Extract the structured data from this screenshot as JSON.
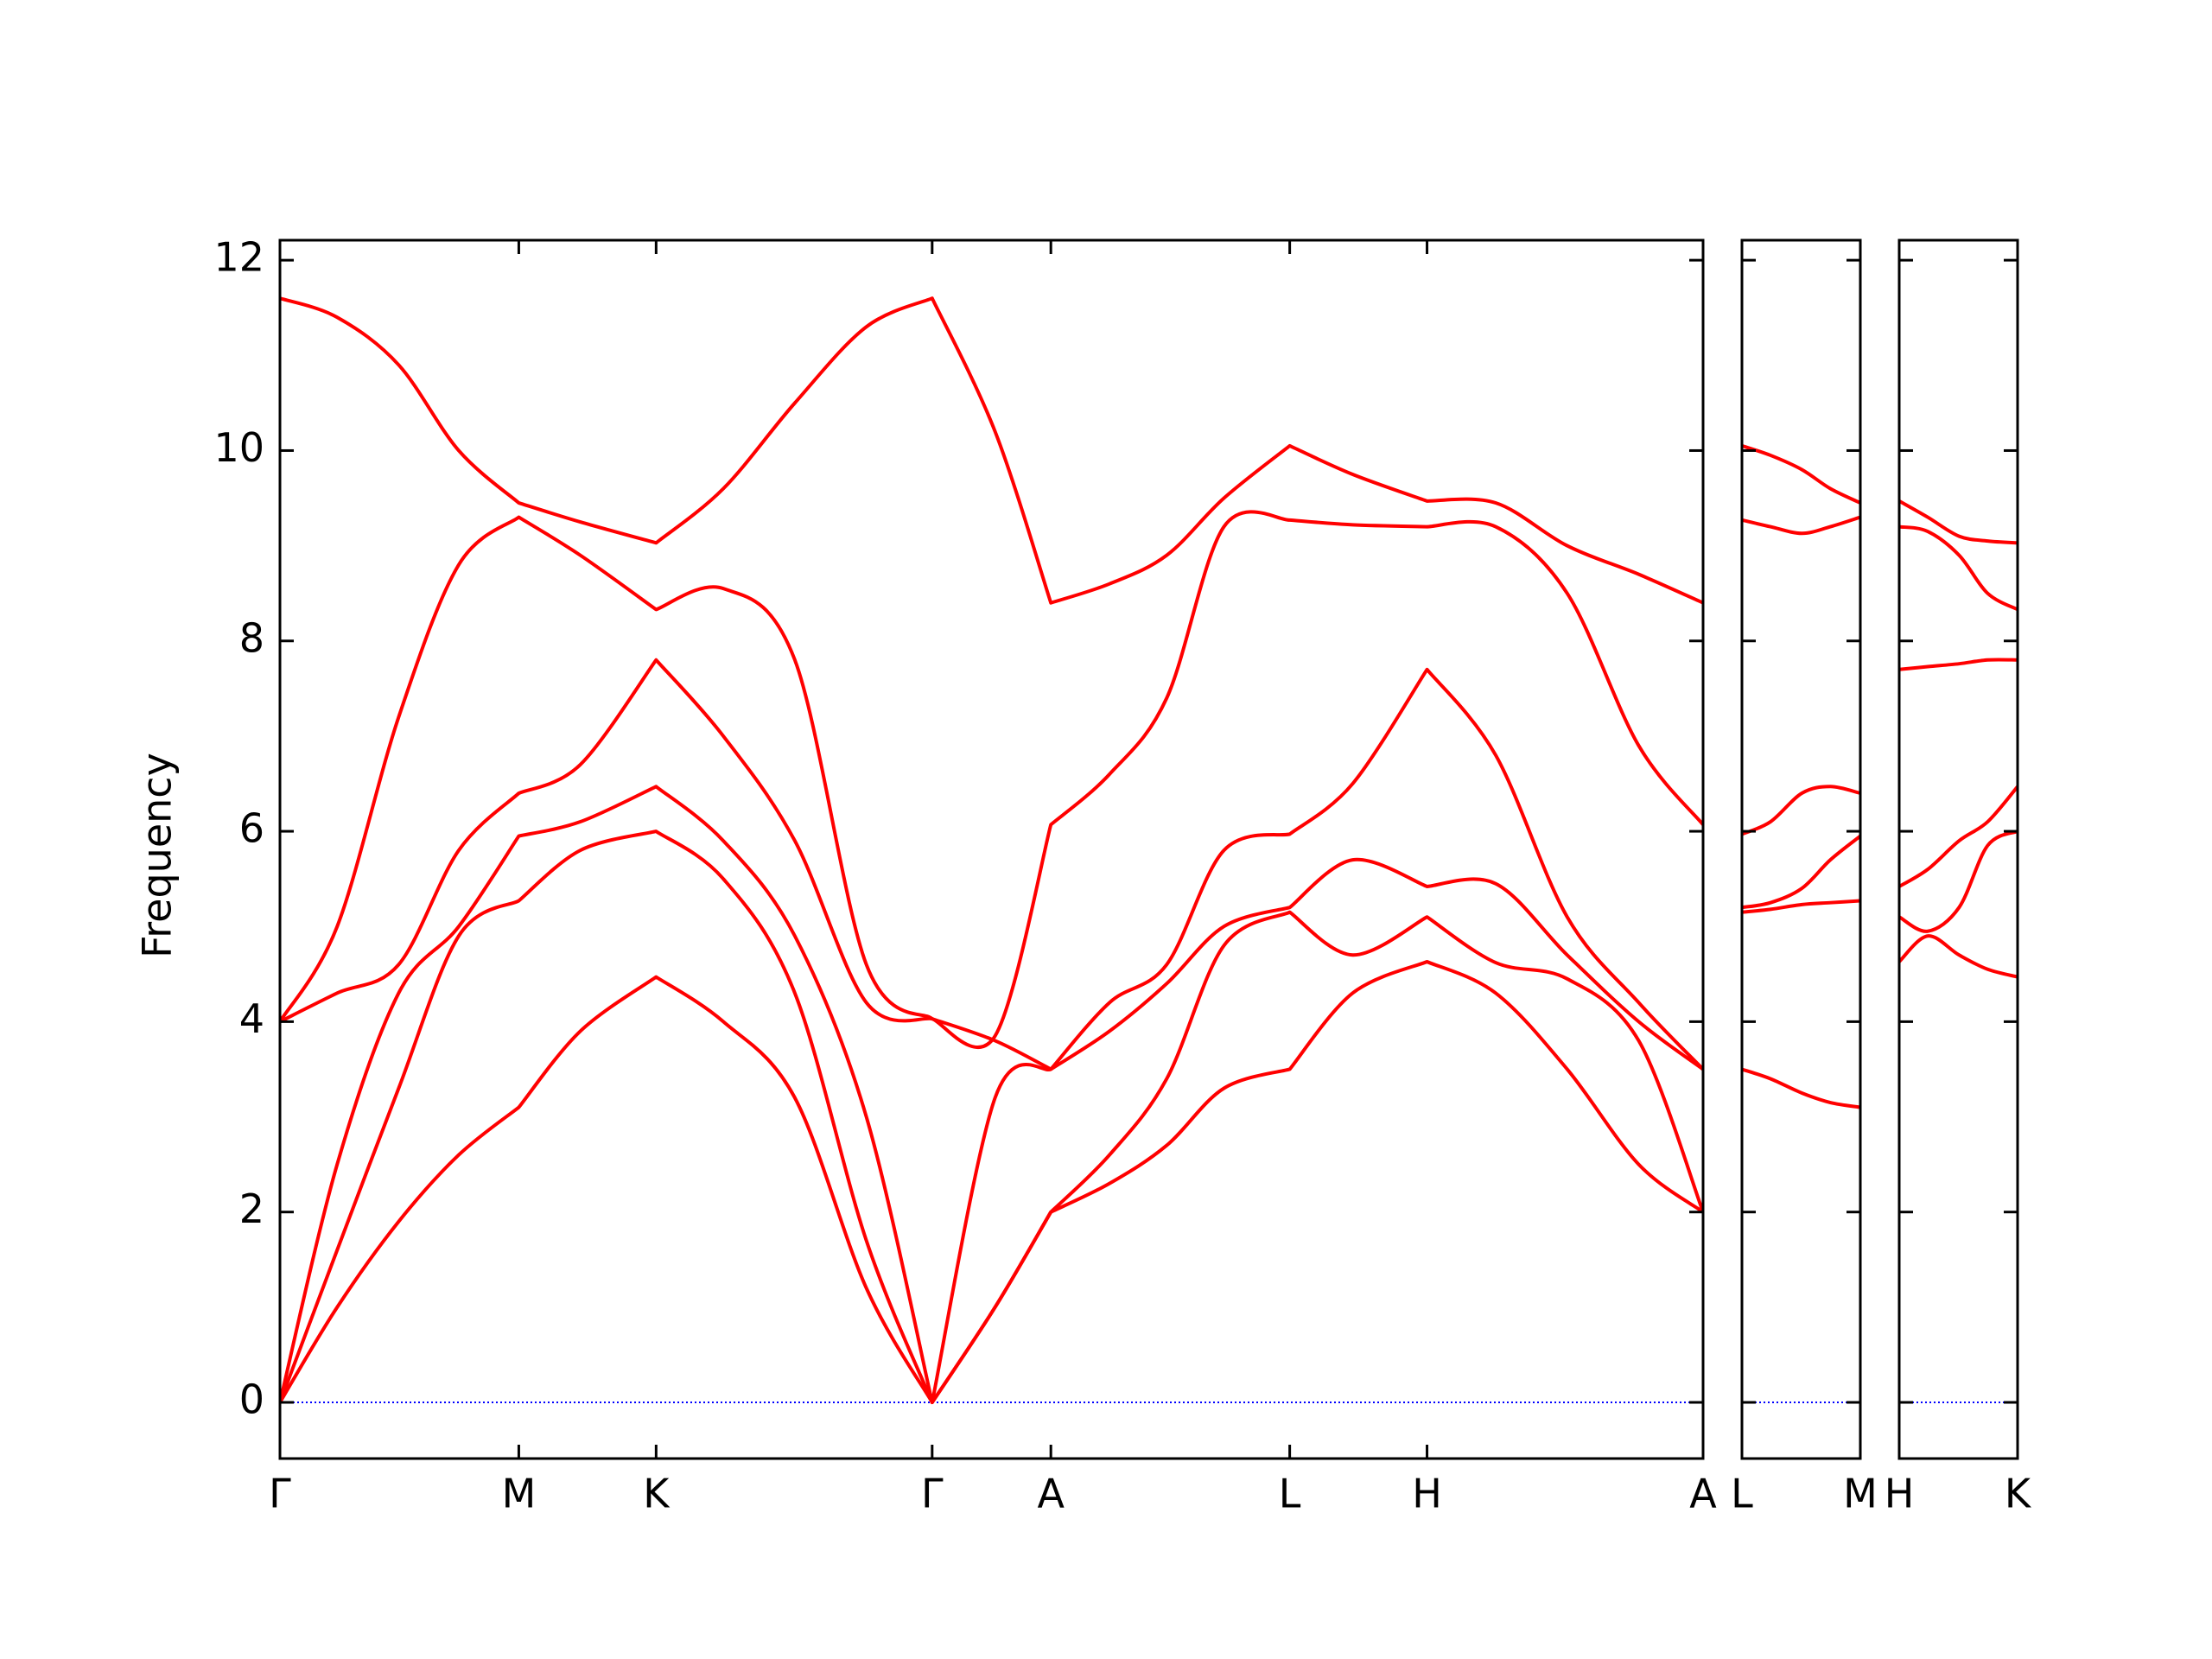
{
  "chart_data": [
    {
      "type": "line",
      "ylabel": "Frequency",
      "x": [
        0,
        40,
        83,
        125,
        167,
        210,
        263,
        310,
        360,
        410,
        456,
        500,
        539,
        580,
        620,
        660,
        706,
        750,
        802,
        850,
        900,
        950,
        995
      ],
      "series": [
        {
          "color": "#ff0000",
          "values": [
            0,
            1.0,
            1.9,
            2.6,
            3.1,
            3.9,
            4.47,
            4.0,
            3.2,
            1.2,
            0,
            1.0,
            2.0,
            2.3,
            2.7,
            3.3,
            3.5,
            4.3,
            4.63,
            4.3,
            3.5,
            2.5,
            2.0
          ]
        },
        {
          "color": "#ff0000",
          "values": [
            0,
            1.6,
            3.3,
            4.9,
            5.27,
            5.8,
            6.0,
            5.5,
            4.3,
            1.7,
            0,
            1.0,
            2.0,
            2.6,
            3.4,
            4.8,
            5.15,
            4.7,
            5.1,
            4.62,
            4.45,
            3.8,
            2.0
          ]
        },
        {
          "color": "#ff0000",
          "values": [
            0,
            2.5,
            4.3,
            5.0,
            5.95,
            6.1,
            6.47,
            5.9,
            4.9,
            3.0,
            0,
            3.2,
            3.5,
            3.9,
            4.4,
            5.0,
            5.2,
            5.7,
            5.42,
            5.45,
            4.7,
            4.0,
            3.5
          ]
        },
        {
          "color": "#ff0000",
          "values": [
            4.0,
            4.3,
            4.6,
            5.8,
            6.4,
            6.7,
            7.8,
            7.0,
            5.9,
            4.2,
            4.03,
            3.8,
            3.5,
            4.2,
            4.6,
            5.8,
            5.97,
            6.5,
            7.7,
            6.8,
            5.1,
            4.2,
            3.5
          ]
        },
        {
          "color": "#ff0000",
          "values": [
            4.0,
            5.0,
            7.2,
            8.8,
            9.3,
            8.9,
            8.33,
            8.55,
            7.8,
            4.6,
            4.03,
            3.85,
            6.07,
            6.6,
            7.4,
            9.2,
            9.27,
            9.22,
            9.2,
            9.2,
            8.5,
            6.9,
            6.07
          ]
        },
        {
          "color": "#ff0000",
          "values": [
            11.6,
            11.4,
            10.9,
            10.0,
            9.45,
            9.25,
            9.03,
            9.6,
            10.5,
            11.3,
            11.6,
            10.2,
            8.4,
            8.6,
            8.9,
            9.5,
            10.05,
            9.75,
            9.47,
            9.45,
            9.0,
            8.7,
            8.4
          ]
        }
      ],
      "xlim": [
        0,
        995
      ],
      "xticks": [
        {
          "value": 0,
          "label": "Γ"
        },
        {
          "value": 167,
          "label": "M"
        },
        {
          "value": 263,
          "label": "K"
        },
        {
          "value": 456,
          "label": "Γ"
        },
        {
          "value": 539,
          "label": "A"
        },
        {
          "value": 706,
          "label": "L"
        },
        {
          "value": 802,
          "label": "H"
        },
        {
          "value": 995,
          "label": "A"
        }
      ],
      "ylim": [
        -0.59,
        12.21
      ],
      "yticks": [
        0,
        2,
        4,
        6,
        8,
        10,
        12
      ],
      "zero_line": true,
      "zero_line_color": "#0000ff"
    },
    {
      "type": "line",
      "x": [
        0,
        20,
        42,
        62,
        83
      ],
      "series": [
        {
          "color": "#ff0000",
          "values": [
            3.5,
            3.4,
            3.25,
            3.15,
            3.1
          ]
        },
        {
          "color": "#ff0000",
          "values": [
            5.15,
            5.18,
            5.23,
            5.25,
            5.27
          ]
        },
        {
          "color": "#ff0000",
          "values": [
            5.2,
            5.25,
            5.4,
            5.7,
            5.95
          ]
        },
        {
          "color": "#ff0000",
          "values": [
            5.97,
            6.1,
            6.4,
            6.47,
            6.4
          ]
        },
        {
          "color": "#ff0000",
          "values": [
            9.27,
            9.2,
            9.13,
            9.2,
            9.3
          ]
        },
        {
          "color": "#ff0000",
          "values": [
            10.05,
            9.95,
            9.8,
            9.6,
            9.45
          ]
        }
      ],
      "xlim": [
        0,
        83
      ],
      "xticks": [
        {
          "value": 0,
          "label": "L"
        },
        {
          "value": 83,
          "label": "M"
        }
      ],
      "ylim": [
        -0.59,
        12.21
      ],
      "yticks": [
        0,
        2,
        4,
        6,
        8,
        10,
        12
      ],
      "zero_line": true,
      "zero_line_color": "#0000ff"
    },
    {
      "type": "line",
      "x": [
        0,
        20,
        42,
        62,
        83
      ],
      "series": [
        {
          "color": "#ff0000",
          "values": [
            4.63,
            4.9,
            4.7,
            4.55,
            4.47
          ]
        },
        {
          "color": "#ff0000",
          "values": [
            5.1,
            4.95,
            5.2,
            5.85,
            6.0
          ]
        },
        {
          "color": "#ff0000",
          "values": [
            5.42,
            5.6,
            5.9,
            6.1,
            6.47
          ]
        },
        {
          "color": "#ff0000",
          "values": [
            7.7,
            7.73,
            7.76,
            7.8,
            7.8
          ]
        },
        {
          "color": "#ff0000",
          "values": [
            9.2,
            9.15,
            8.9,
            8.5,
            8.33
          ]
        },
        {
          "color": "#ff0000",
          "values": [
            9.47,
            9.3,
            9.1,
            9.05,
            9.03
          ]
        }
      ],
      "xlim": [
        0,
        83
      ],
      "xticks": [
        {
          "value": 0,
          "label": "H"
        },
        {
          "value": 83,
          "label": "K"
        }
      ],
      "ylim": [
        -0.59,
        12.21
      ],
      "yticks": [
        0,
        2,
        4,
        6,
        8,
        10,
        12
      ],
      "zero_line": true,
      "zero_line_color": "#0000ff"
    }
  ]
}
